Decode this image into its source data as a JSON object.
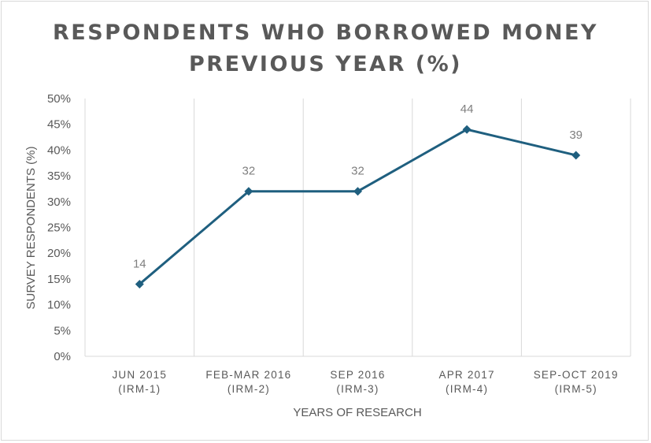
{
  "chart_data": {
    "type": "line",
    "title": [
      "RESPONDENTS WHO BORROWED MONEY",
      "PREVIOUS YEAR (%)"
    ],
    "xlabel": "YEARS OF RESEARCH",
    "ylabel": "SURVEY RESPONDENTS (%)",
    "categories": [
      [
        "JUN 2015",
        "(IRM-1)"
      ],
      [
        "FEB-MAR 2016",
        "(IRM-2)"
      ],
      [
        "SEP 2016",
        "(IRM-3)"
      ],
      [
        "APR 2017",
        "(IRM-4)"
      ],
      [
        "SEP-OCT 2019",
        "(IRM-5)"
      ]
    ],
    "values": [
      14,
      32,
      32,
      44,
      39
    ],
    "data_labels": [
      "14",
      "32",
      "32",
      "44",
      "39"
    ],
    "ylim": [
      0,
      50
    ],
    "yticks": [
      "0%",
      "5%",
      "10%",
      "15%",
      "20%",
      "25%",
      "30%",
      "35%",
      "40%",
      "45%",
      "50%"
    ],
    "y_unit": "%",
    "grid": "vertical",
    "legend": "none",
    "line_color": "#1f5f7f",
    "grid_color": "#d9d9d9"
  }
}
